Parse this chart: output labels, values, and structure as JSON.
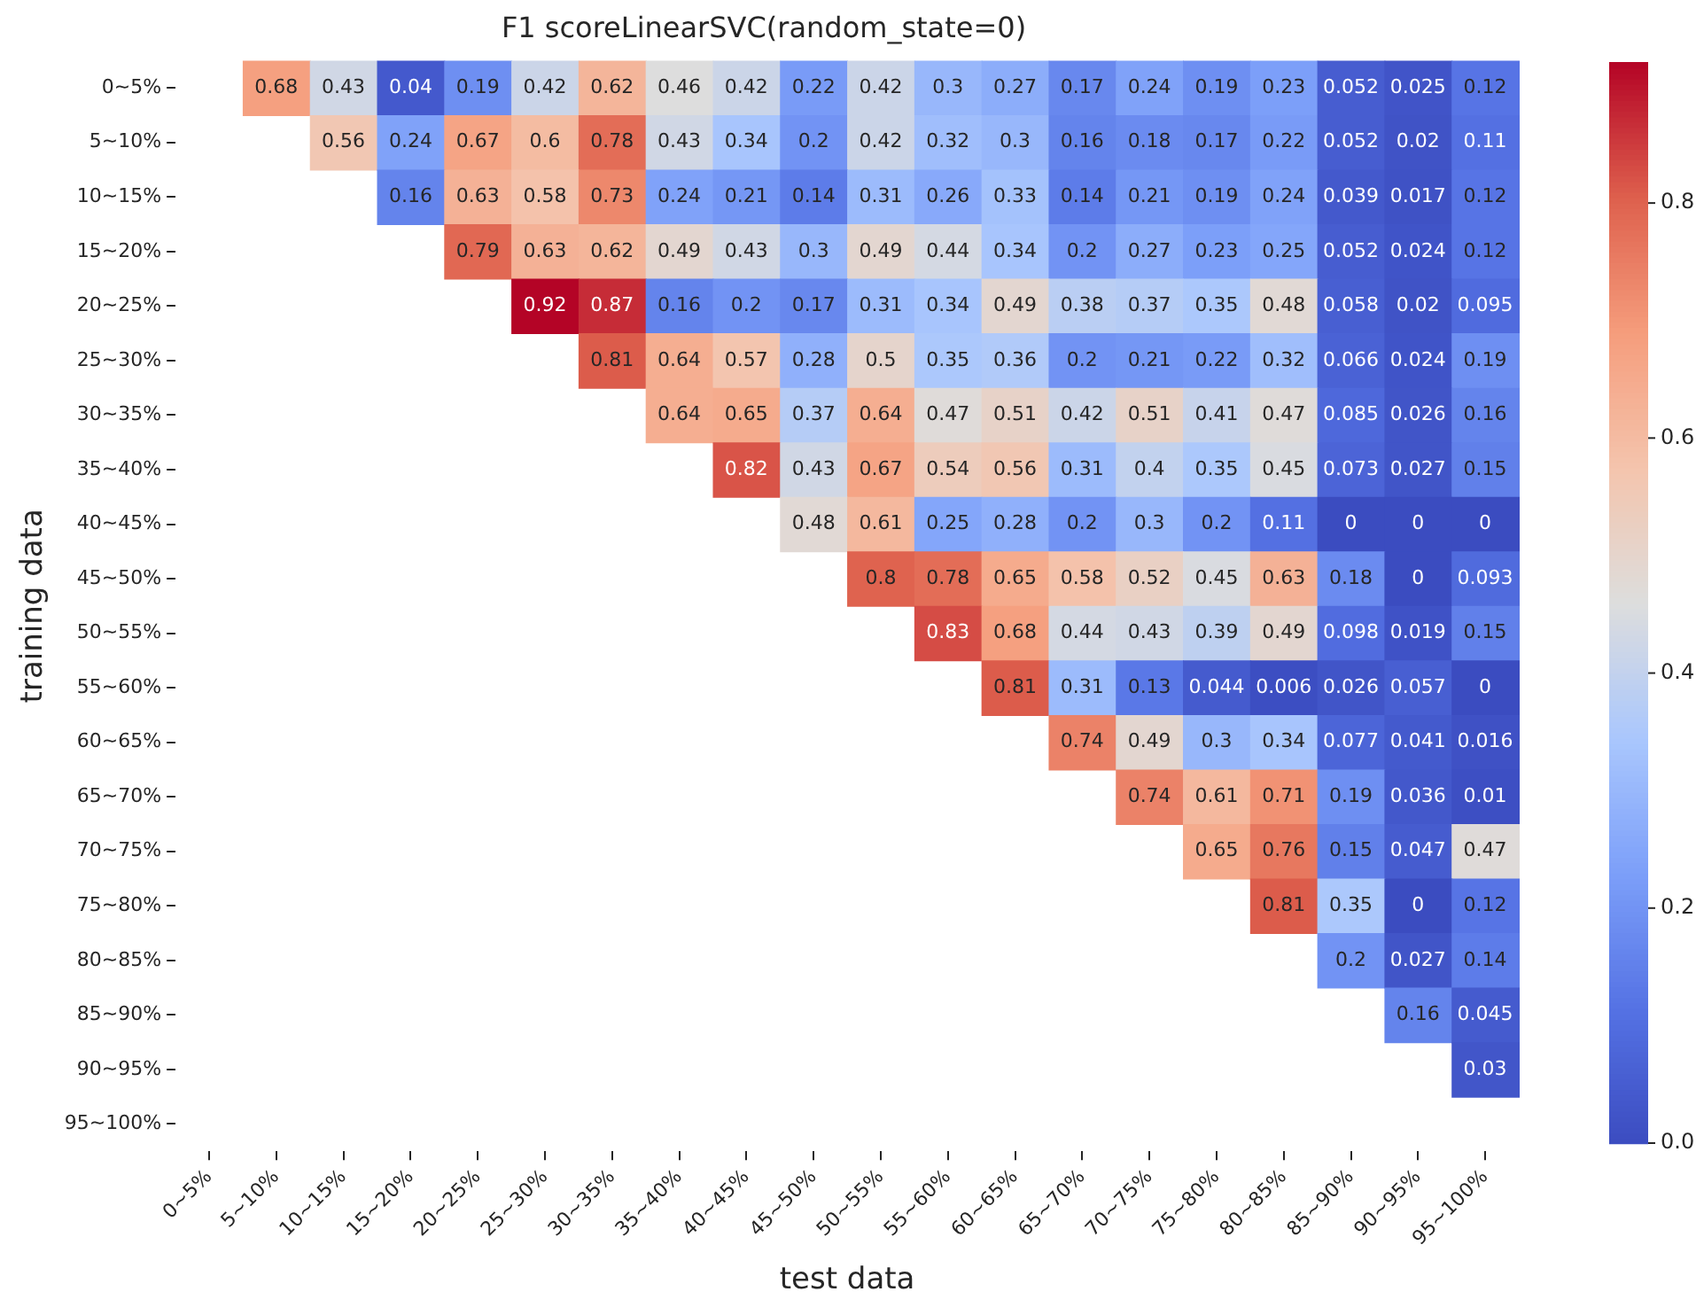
{
  "chart_data": {
    "type": "heatmap",
    "title": "F1 scoreLinearSVC(random_state=0)",
    "xlabel": "test data",
    "ylabel": "training data",
    "categories": [
      "0~5%",
      "5~10%",
      "10~15%",
      "15~20%",
      "20~25%",
      "25~30%",
      "30~35%",
      "35~40%",
      "40~45%",
      "45~50%",
      "50~55%",
      "55~60%",
      "60~65%",
      "65~70%",
      "70~75%",
      "75~80%",
      "80~85%",
      "85~90%",
      "90~95%",
      "95~100%"
    ],
    "y_categories": [
      "0~5%",
      "5~10%",
      "10~15%",
      "15~20%",
      "20~25%",
      "25~30%",
      "30~35%",
      "35~40%",
      "40~45%",
      "45~50%",
      "50~55%",
      "55~60%",
      "60~65%",
      "65~70%",
      "70~75%",
      "75~80%",
      "80~85%",
      "85~90%",
      "90~95%",
      "95~100%"
    ],
    "cells": [
      [
        null,
        0.68,
        0.43,
        0.04,
        0.19,
        0.42,
        0.62,
        0.46,
        0.42,
        0.22,
        0.42,
        0.3,
        0.27,
        0.17,
        0.24,
        0.19,
        0.23,
        0.052,
        0.025,
        0.12
      ],
      [
        null,
        null,
        0.56,
        0.24,
        0.67,
        0.6,
        0.78,
        0.43,
        0.34,
        0.2,
        0.42,
        0.32,
        0.3,
        0.16,
        0.18,
        0.17,
        0.22,
        0.052,
        0.02,
        0.11
      ],
      [
        null,
        null,
        null,
        0.16,
        0.63,
        0.58,
        0.73,
        0.24,
        0.21,
        0.14,
        0.31,
        0.26,
        0.33,
        0.14,
        0.21,
        0.19,
        0.24,
        0.039,
        0.017,
        0.12
      ],
      [
        null,
        null,
        null,
        null,
        0.79,
        0.63,
        0.62,
        0.49,
        0.43,
        0.3,
        0.49,
        0.44,
        0.34,
        0.2,
        0.27,
        0.23,
        0.25,
        0.052,
        0.024,
        0.12
      ],
      [
        null,
        null,
        null,
        null,
        null,
        0.92,
        0.87,
        0.16,
        0.2,
        0.17,
        0.31,
        0.34,
        0.49,
        0.38,
        0.37,
        0.35,
        0.48,
        0.058,
        0.02,
        0.095
      ],
      [
        null,
        null,
        null,
        null,
        null,
        null,
        0.81,
        0.64,
        0.57,
        0.28,
        0.5,
        0.35,
        0.36,
        0.2,
        0.21,
        0.22,
        0.32,
        0.066,
        0.024,
        0.19
      ],
      [
        null,
        null,
        null,
        null,
        null,
        null,
        null,
        0.64,
        0.65,
        0.37,
        0.64,
        0.47,
        0.51,
        0.42,
        0.51,
        0.41,
        0.47,
        0.085,
        0.026,
        0.16
      ],
      [
        null,
        null,
        null,
        null,
        null,
        null,
        null,
        null,
        0.82,
        0.43,
        0.67,
        0.54,
        0.56,
        0.31,
        0.4,
        0.35,
        0.45,
        0.073,
        0.027,
        0.15
      ],
      [
        null,
        null,
        null,
        null,
        null,
        null,
        null,
        null,
        null,
        0.48,
        0.61,
        0.25,
        0.28,
        0.2,
        0.3,
        0.2,
        0.11,
        0,
        0,
        0
      ],
      [
        null,
        null,
        null,
        null,
        null,
        null,
        null,
        null,
        null,
        null,
        0.8,
        0.78,
        0.65,
        0.58,
        0.52,
        0.45,
        0.63,
        0.18,
        0,
        0.093
      ],
      [
        null,
        null,
        null,
        null,
        null,
        null,
        null,
        null,
        null,
        null,
        null,
        0.83,
        0.68,
        0.44,
        0.43,
        0.39,
        0.49,
        0.098,
        0.019,
        0.15
      ],
      [
        null,
        null,
        null,
        null,
        null,
        null,
        null,
        null,
        null,
        null,
        null,
        null,
        0.81,
        0.31,
        0.13,
        0.044,
        0.006,
        0.026,
        0.057,
        0
      ],
      [
        null,
        null,
        null,
        null,
        null,
        null,
        null,
        null,
        null,
        null,
        null,
        null,
        null,
        0.74,
        0.49,
        0.3,
        0.34,
        0.077,
        0.041,
        0.016
      ],
      [
        null,
        null,
        null,
        null,
        null,
        null,
        null,
        null,
        null,
        null,
        null,
        null,
        null,
        null,
        0.74,
        0.61,
        0.71,
        0.19,
        0.036,
        0.01
      ],
      [
        null,
        null,
        null,
        null,
        null,
        null,
        null,
        null,
        null,
        null,
        null,
        null,
        null,
        null,
        null,
        0.65,
        0.76,
        0.15,
        0.047,
        0.47
      ],
      [
        null,
        null,
        null,
        null,
        null,
        null,
        null,
        null,
        null,
        null,
        null,
        null,
        null,
        null,
        null,
        null,
        0.81,
        0.35,
        0,
        0.12
      ],
      [
        null,
        null,
        null,
        null,
        null,
        null,
        null,
        null,
        null,
        null,
        null,
        null,
        null,
        null,
        null,
        null,
        null,
        0.2,
        0.027,
        0.14
      ],
      [
        null,
        null,
        null,
        null,
        null,
        null,
        null,
        null,
        null,
        null,
        null,
        null,
        null,
        null,
        null,
        null,
        null,
        null,
        0.16,
        0.045
      ],
      [
        null,
        null,
        null,
        null,
        null,
        null,
        null,
        null,
        null,
        null,
        null,
        null,
        null,
        null,
        null,
        null,
        null,
        null,
        null,
        0.03
      ],
      [
        null,
        null,
        null,
        null,
        null,
        null,
        null,
        null,
        null,
        null,
        null,
        null,
        null,
        null,
        null,
        null,
        null,
        null,
        null,
        null
      ]
    ],
    "clim": [
      0,
      0.92
    ],
    "cticks": [
      {
        "value": 0,
        "label": "0.0"
      },
      0.2,
      0.4,
      0.6,
      0.8
    ],
    "data_labels": true
  }
}
